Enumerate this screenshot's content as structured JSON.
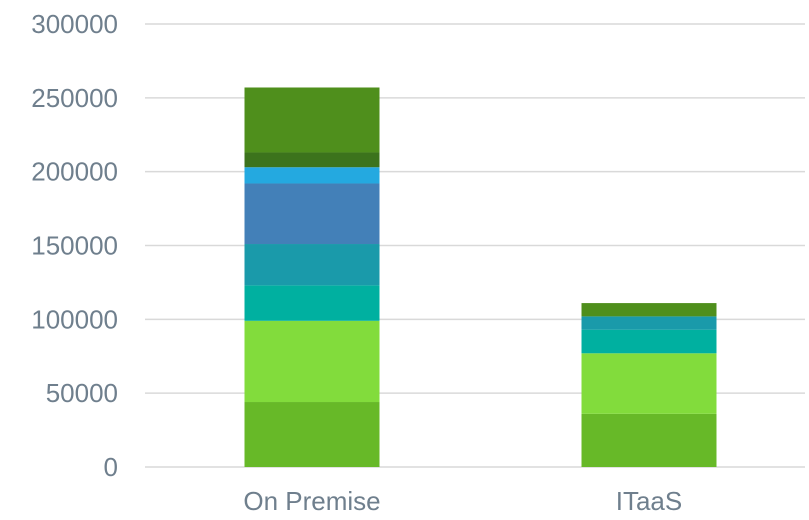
{
  "chart_data": {
    "type": "bar",
    "stacked": true,
    "categories": [
      "On Premise",
      "ITaaS"
    ],
    "series": [
      {
        "values": [
          44000,
          36000
        ],
        "color": "#67b928"
      },
      {
        "values": [
          55000,
          41000
        ],
        "color": "#82dc3c"
      },
      {
        "values": [
          24000,
          16000
        ],
        "color": "#00b0a0"
      },
      {
        "values": [
          28000,
          9000
        ],
        "color": "#1a9aaa"
      },
      {
        "values": [
          41000,
          0
        ],
        "color": "#4380b8"
      },
      {
        "values": [
          11000,
          0
        ],
        "color": "#24a9e0"
      },
      {
        "values": [
          10000,
          0
        ],
        "color": "#3c731c"
      },
      {
        "values": [
          44000,
          9000
        ],
        "color": "#4f8f1c"
      }
    ],
    "yticks": [
      "0",
      "50000",
      "100000",
      "150000",
      "200000",
      "250000",
      "300000"
    ],
    "ylim": [
      0,
      300000
    ],
    "grid": true,
    "xlabel": "",
    "ylabel": "",
    "title": ""
  }
}
